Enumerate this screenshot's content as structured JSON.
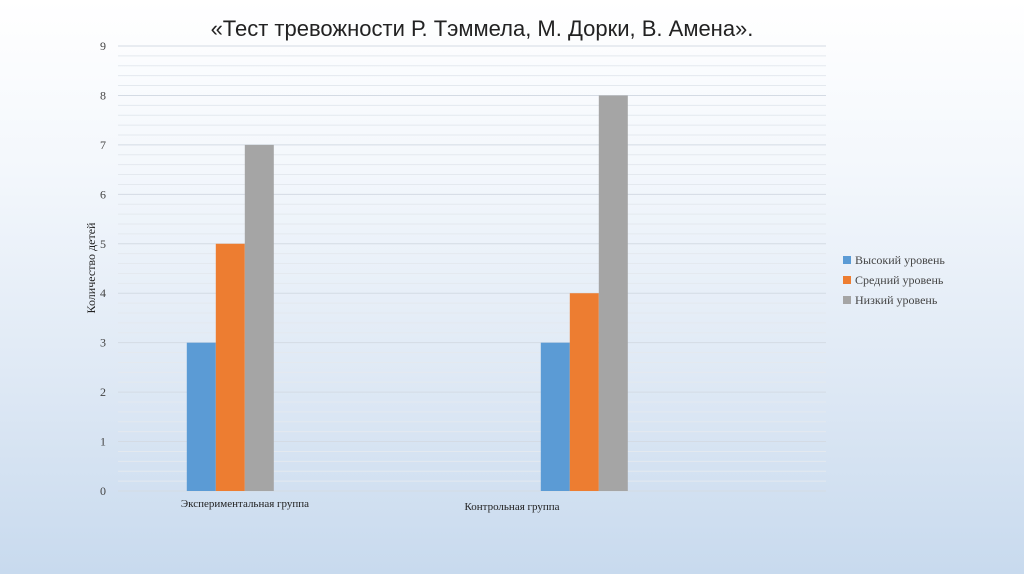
{
  "chart_data": {
    "type": "bar",
    "title": "«Тест тревожности Р. Тэммела, М. Дорки, В. Амена».",
    "ylabel": "Количество детей",
    "xlabel": "",
    "categories": [
      "Экспериментальная группа",
      "Контрольная группа"
    ],
    "series": [
      {
        "name": "Высокий уровень",
        "values": [
          3,
          3
        ],
        "color": "#5b9bd5"
      },
      {
        "name": "Средний уровень",
        "values": [
          5,
          4
        ],
        "color": "#ed7d31"
      },
      {
        "name": "Низкий уровень",
        "values": [
          7,
          8
        ],
        "color": "#a5a5a5"
      }
    ],
    "ylim": [
      0,
      9
    ],
    "yticks": [
      "0",
      "1",
      "2",
      "3",
      "4",
      "5",
      "6",
      "7",
      "8",
      "9"
    ],
    "grid": true,
    "legend_position": "right"
  }
}
